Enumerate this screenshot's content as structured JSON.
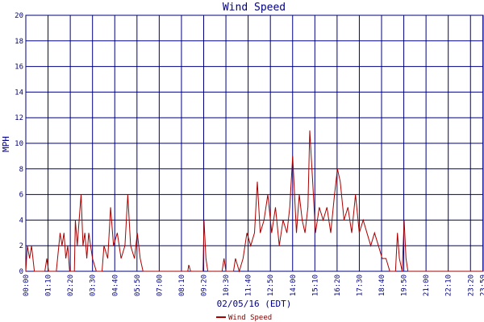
{
  "chart_data": {
    "type": "line",
    "title": "Wind Speed",
    "ylabel": "MPH",
    "xlabel": "02/05/16 (EDT)",
    "ylim": [
      0,
      20
    ],
    "y_ticks": [
      "0",
      "2",
      "4",
      "6",
      "8",
      "10",
      "12",
      "14",
      "16",
      "18",
      "20"
    ],
    "x_ticks": [
      "00:00",
      "01:10",
      "02:20",
      "03:30",
      "04:40",
      "05:50",
      "07:00",
      "08:10",
      "09:20",
      "10:30",
      "11:40",
      "12:50",
      "14:00",
      "15:10",
      "16:20",
      "17:30",
      "18:40",
      "19:50",
      "21:00",
      "22:10",
      "23:20",
      "23:59"
    ],
    "grid": true,
    "legend_position": "bottom-center",
    "colors": {
      "series": "#aa0000",
      "grid": "#000080",
      "text": "#000080",
      "legend_text": "#800000"
    },
    "series": [
      {
        "name": "Wind Speed",
        "points": [
          [
            0.0,
            0
          ],
          [
            0.08,
            2
          ],
          [
            0.2,
            1
          ],
          [
            0.3,
            2
          ],
          [
            0.45,
            0
          ],
          [
            1.0,
            0
          ],
          [
            1.1,
            1
          ],
          [
            1.2,
            0
          ],
          [
            1.6,
            0
          ],
          [
            1.8,
            3
          ],
          [
            1.9,
            2
          ],
          [
            2.0,
            3
          ],
          [
            2.1,
            1
          ],
          [
            2.2,
            2
          ],
          [
            2.3,
            0
          ],
          [
            2.55,
            0
          ],
          [
            2.6,
            4
          ],
          [
            2.7,
            2
          ],
          [
            2.8,
            4
          ],
          [
            2.9,
            6
          ],
          [
            3.0,
            2
          ],
          [
            3.1,
            3
          ],
          [
            3.2,
            1
          ],
          [
            3.3,
            3
          ],
          [
            3.4,
            2
          ],
          [
            3.5,
            1
          ],
          [
            3.7,
            0
          ],
          [
            4.0,
            0
          ],
          [
            4.1,
            2
          ],
          [
            4.3,
            1
          ],
          [
            4.45,
            5
          ],
          [
            4.6,
            2
          ],
          [
            4.8,
            3
          ],
          [
            5.0,
            1
          ],
          [
            5.2,
            2
          ],
          [
            5.35,
            6
          ],
          [
            5.5,
            2
          ],
          [
            5.7,
            1
          ],
          [
            5.85,
            3
          ],
          [
            6.0,
            1
          ],
          [
            6.15,
            0
          ],
          [
            8.5,
            0
          ],
          [
            8.55,
            0.5
          ],
          [
            8.65,
            0
          ],
          [
            9.3,
            0
          ],
          [
            9.35,
            4
          ],
          [
            9.45,
            1
          ],
          [
            9.55,
            0
          ],
          [
            10.3,
            0
          ],
          [
            10.4,
            1
          ],
          [
            10.5,
            0
          ],
          [
            10.9,
            0
          ],
          [
            11.0,
            1
          ],
          [
            11.2,
            0
          ],
          [
            11.4,
            1
          ],
          [
            11.6,
            3
          ],
          [
            11.8,
            2
          ],
          [
            12.0,
            3
          ],
          [
            12.15,
            7
          ],
          [
            12.3,
            3
          ],
          [
            12.5,
            4
          ],
          [
            12.7,
            6
          ],
          [
            12.9,
            3
          ],
          [
            13.1,
            5
          ],
          [
            13.3,
            2
          ],
          [
            13.5,
            4
          ],
          [
            13.7,
            3
          ],
          [
            13.85,
            5
          ],
          [
            14.0,
            9
          ],
          [
            14.2,
            3
          ],
          [
            14.35,
            6
          ],
          [
            14.5,
            4
          ],
          [
            14.65,
            3
          ],
          [
            14.8,
            5
          ],
          [
            14.9,
            11
          ],
          [
            15.05,
            7
          ],
          [
            15.2,
            3
          ],
          [
            15.4,
            5
          ],
          [
            15.6,
            4
          ],
          [
            15.8,
            5
          ],
          [
            16.0,
            3
          ],
          [
            16.2,
            6
          ],
          [
            16.35,
            8
          ],
          [
            16.5,
            7
          ],
          [
            16.7,
            4
          ],
          [
            16.9,
            5
          ],
          [
            17.1,
            3
          ],
          [
            17.3,
            6
          ],
          [
            17.5,
            3
          ],
          [
            17.7,
            4
          ],
          [
            17.9,
            3
          ],
          [
            18.1,
            2
          ],
          [
            18.3,
            3
          ],
          [
            18.5,
            2
          ],
          [
            18.7,
            1
          ],
          [
            18.9,
            1
          ],
          [
            19.1,
            0
          ],
          [
            19.4,
            0
          ],
          [
            19.5,
            3
          ],
          [
            19.6,
            1
          ],
          [
            19.75,
            0
          ],
          [
            19.85,
            4
          ],
          [
            19.95,
            1
          ],
          [
            20.05,
            0
          ],
          [
            24.0,
            0
          ]
        ]
      }
    ]
  }
}
